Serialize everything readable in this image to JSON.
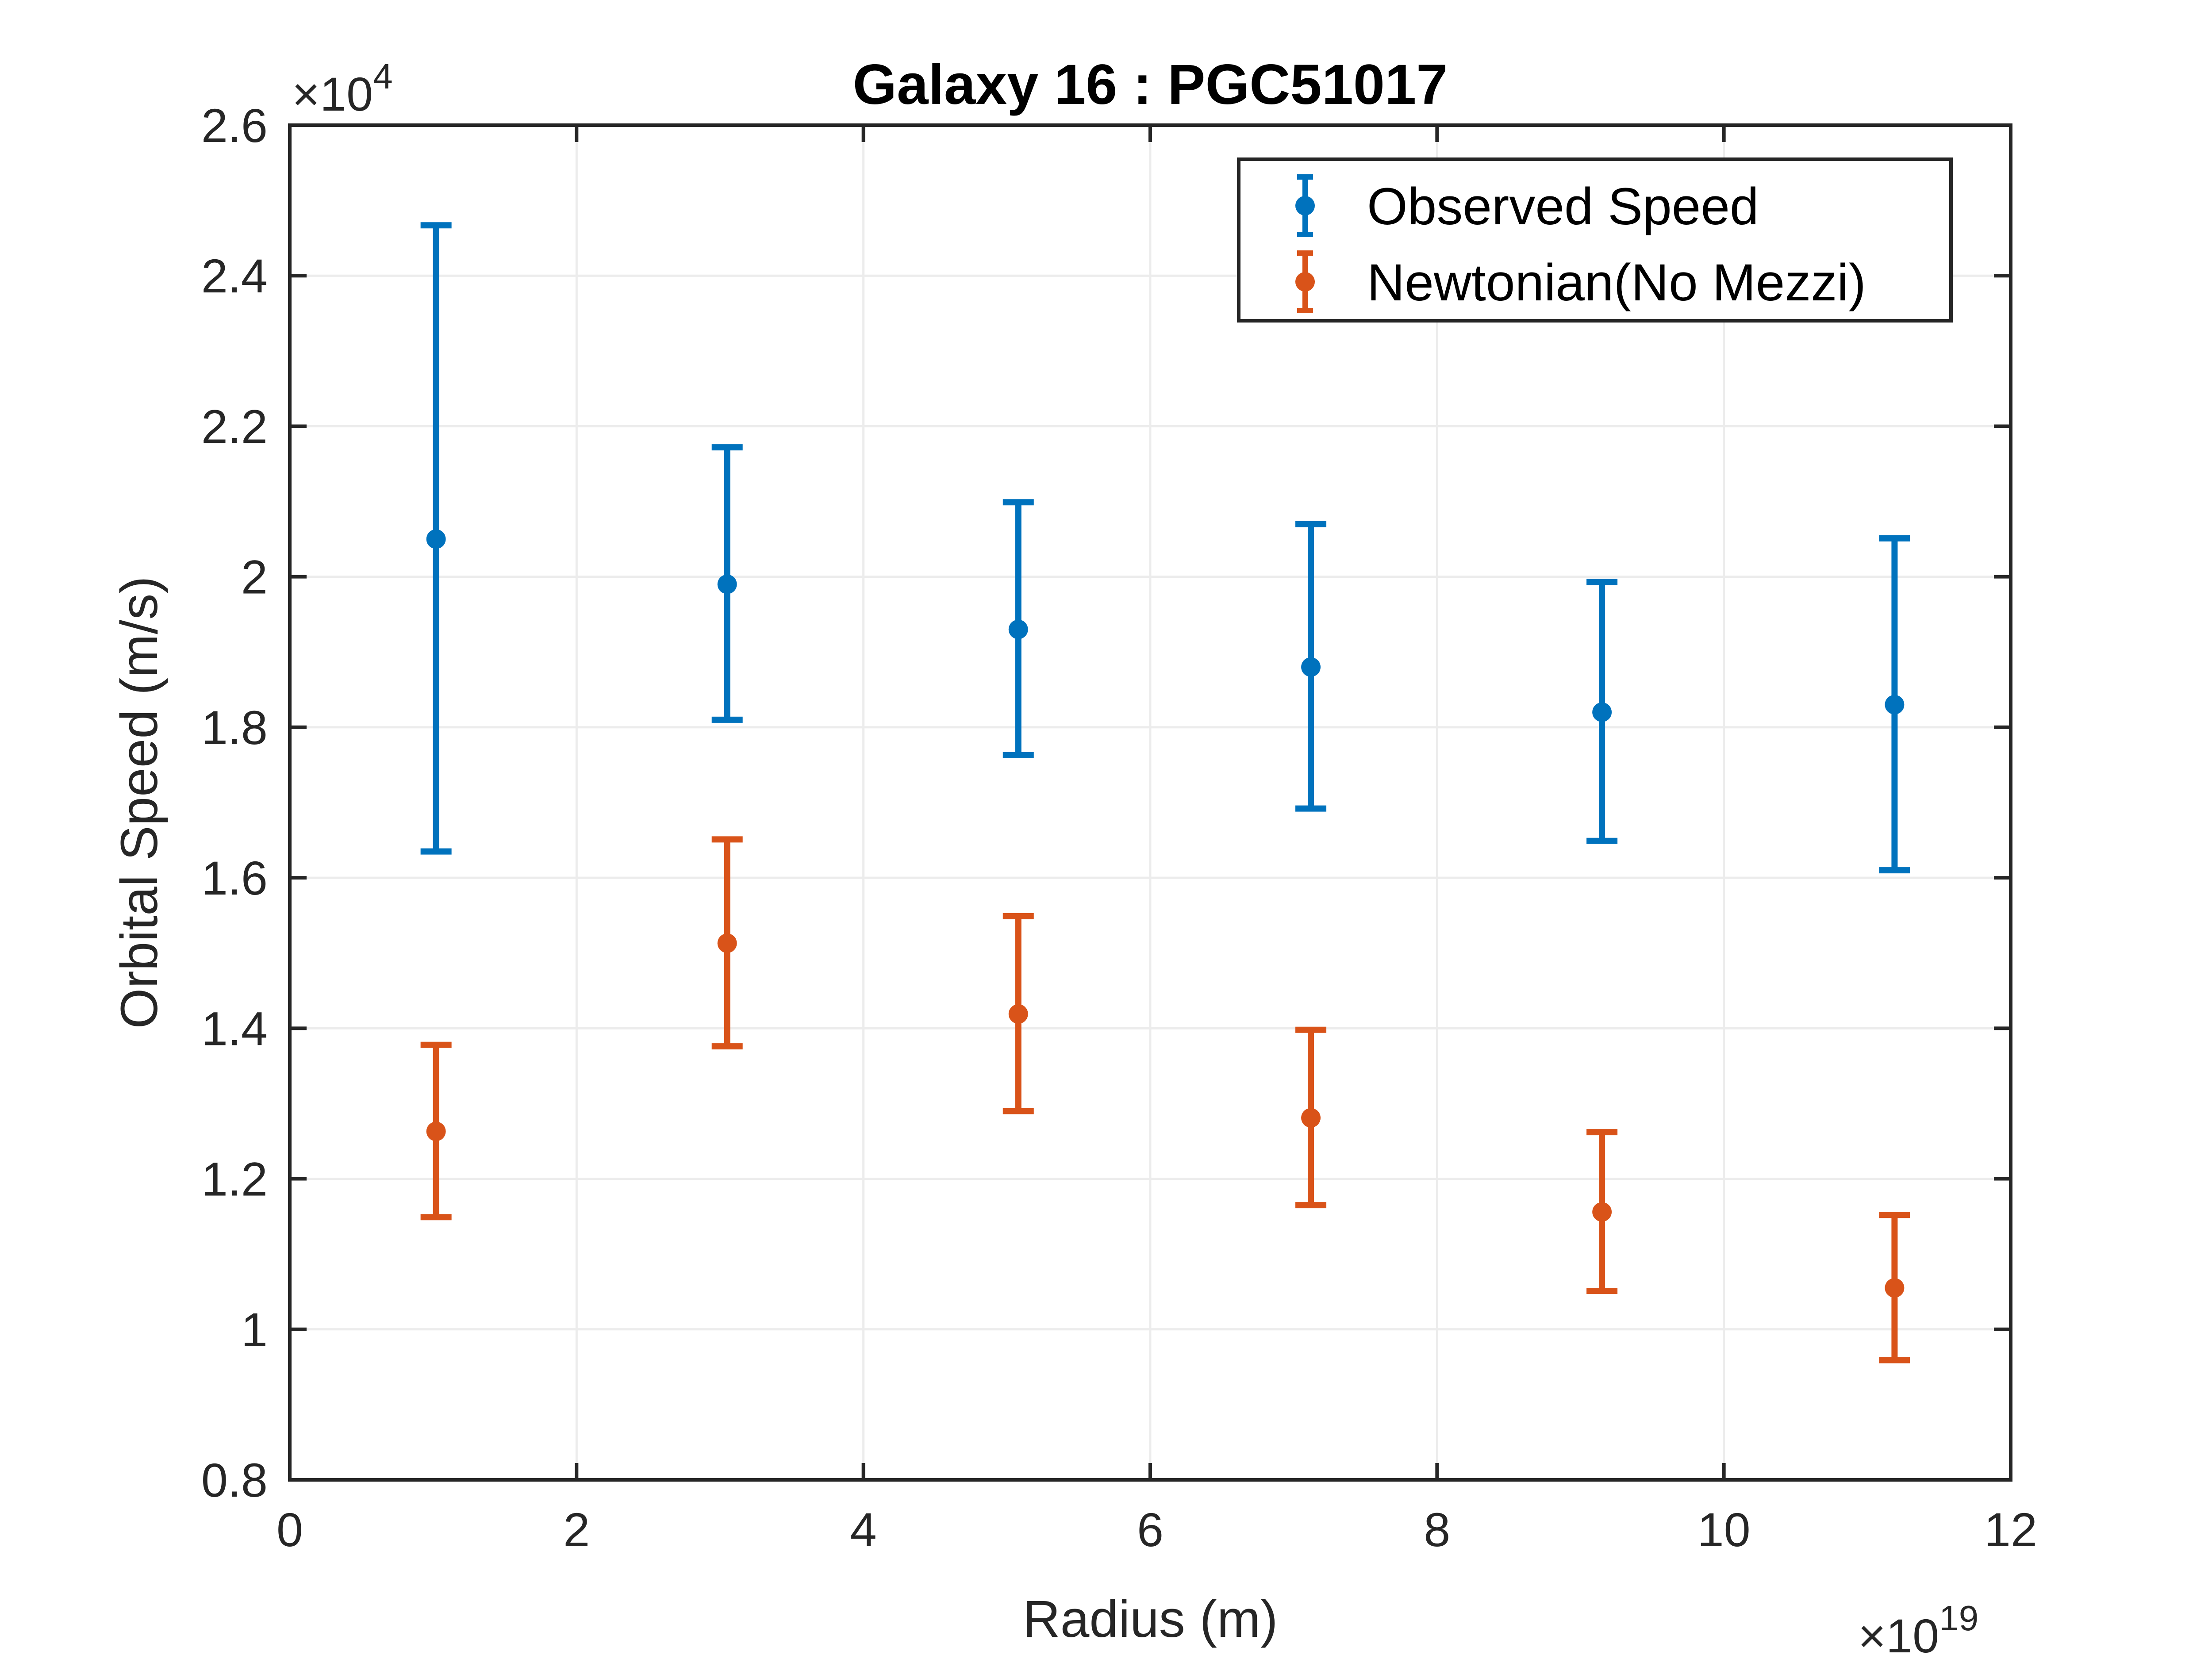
{
  "chart_data": {
    "type": "scatter",
    "title": "Galaxy 16 : PGC51017",
    "xlabel": "Radius (m)",
    "ylabel": "Orbital Speed (m/s)",
    "x_exponent_base": "×10",
    "x_exponent_power": "19",
    "y_exponent_base": "×10",
    "y_exponent_power": "4",
    "xlim": [
      0,
      12
    ],
    "ylim": [
      0.8,
      2.6
    ],
    "x_scale": 1e+19,
    "y_scale": 10000.0,
    "xticks": [
      0,
      2,
      4,
      6,
      8,
      10,
      12
    ],
    "xtick_labels": [
      "0",
      "2",
      "4",
      "6",
      "8",
      "10",
      "12"
    ],
    "yticks": [
      0.8,
      1.0,
      1.2,
      1.4,
      1.6,
      1.8,
      2.0,
      2.2,
      2.4,
      2.6
    ],
    "ytick_labels": [
      "0.8",
      "1",
      "1.2",
      "1.4",
      "1.6",
      "1.8",
      "2",
      "2.2",
      "2.4",
      "2.6"
    ],
    "grid": true,
    "legend_position": "top-right",
    "series": [
      {
        "name": "Observed Speed",
        "color": "#0072BD",
        "x": [
          1.02,
          3.05,
          5.08,
          7.12,
          9.15,
          11.19
        ],
        "y": [
          2.05,
          1.99,
          1.93,
          1.88,
          1.82,
          1.83
        ],
        "y_low": [
          1.635,
          1.81,
          1.763,
          1.692,
          1.649,
          1.61
        ],
        "y_high": [
          2.467,
          2.172,
          2.099,
          2.07,
          1.993,
          2.051
        ]
      },
      {
        "name": "Newtonian(No Mezzi)",
        "color": "#D95319",
        "x": [
          1.02,
          3.05,
          5.08,
          7.12,
          9.15,
          11.19
        ],
        "y": [
          1.263,
          1.513,
          1.419,
          1.281,
          1.156,
          1.055
        ],
        "y_low": [
          1.149,
          1.376,
          1.29,
          1.165,
          1.051,
          0.959
        ],
        "y_high": [
          1.378,
          1.651,
          1.549,
          1.398,
          1.262,
          1.152
        ]
      }
    ]
  }
}
